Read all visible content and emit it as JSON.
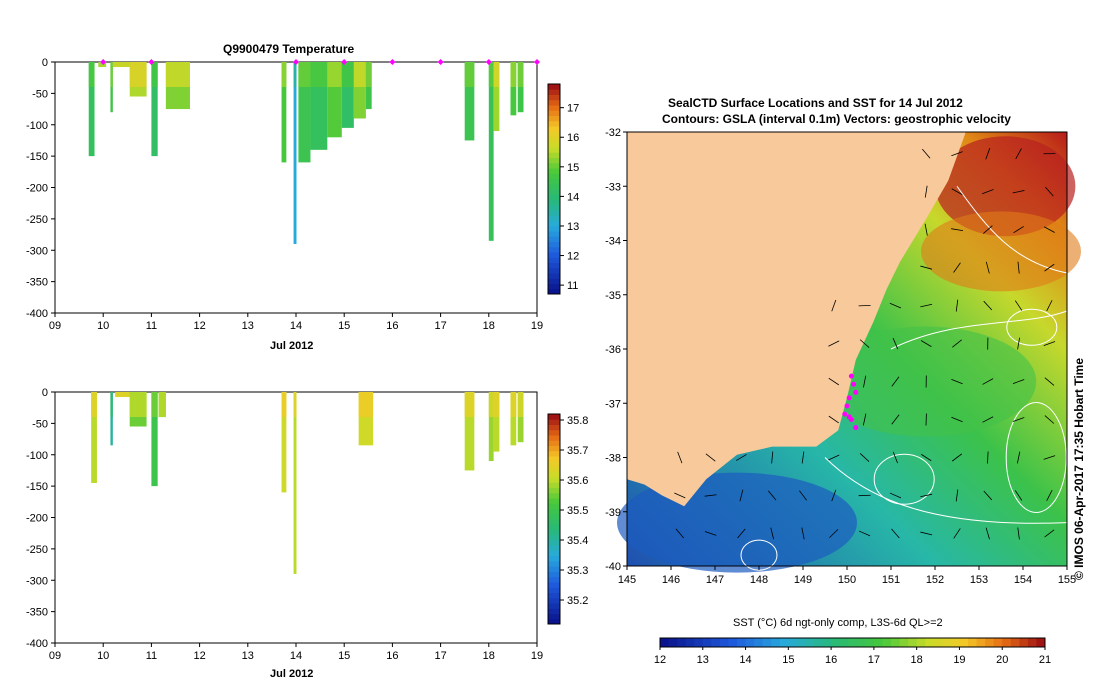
{
  "chart_data": [
    {
      "type": "heatmap",
      "title": "Q9900479  Temperature",
      "xlabel": "Jul 2012",
      "x_ticks": [
        "09",
        "10",
        "11",
        "12",
        "13",
        "14",
        "15",
        "16",
        "17",
        "18",
        "19"
      ],
      "xlim": [
        9,
        19
      ],
      "ylim": [
        -400,
        0
      ],
      "y_ticks": [
        0,
        -50,
        -100,
        -150,
        -200,
        -250,
        -300,
        -350,
        -400
      ],
      "colorbar": {
        "min": 10.7,
        "max": 17.8,
        "ticks": [
          11,
          12,
          13,
          14,
          15,
          16,
          17
        ]
      },
      "profile_markers_day": [
        10.0,
        11.0,
        14.0,
        15.0,
        16.0,
        17.0,
        18.0,
        19.0
      ],
      "profiles": [
        {
          "x": 9.7,
          "w": 0.12,
          "depth": -150,
          "value": 14.3
        },
        {
          "x": 9.9,
          "w": 0.16,
          "depth": -8,
          "value": 15.0
        },
        {
          "x": 10.15,
          "w": 0.05,
          "depth": -80,
          "value": 14.6
        },
        {
          "x": 10.2,
          "w": 0.35,
          "depth": -8,
          "value": 15.3
        },
        {
          "x": 10.55,
          "w": 0.35,
          "depth": -55,
          "value": 15.5
        },
        {
          "x": 11.0,
          "w": 0.13,
          "depth": -150,
          "value": 14.2
        },
        {
          "x": 11.3,
          "w": 0.5,
          "depth": -75,
          "value": 15.2
        },
        {
          "x": 13.7,
          "w": 0.1,
          "depth": -160,
          "value": 14.8
        },
        {
          "x": 13.95,
          "w": 0.06,
          "depth": -290,
          "value": 13.0
        },
        {
          "x": 14.05,
          "w": 0.25,
          "depth": -160,
          "value": 14.5
        },
        {
          "x": 14.3,
          "w": 0.35,
          "depth": -140,
          "value": 14.3
        },
        {
          "x": 14.65,
          "w": 0.3,
          "depth": -120,
          "value": 14.9
        },
        {
          "x": 14.95,
          "w": 0.25,
          "depth": -105,
          "value": 14.2
        },
        {
          "x": 15.2,
          "w": 0.25,
          "depth": -90,
          "value": 15.2
        },
        {
          "x": 15.45,
          "w": 0.12,
          "depth": -75,
          "value": 14.6
        },
        {
          "x": 17.5,
          "w": 0.2,
          "depth": -125,
          "value": 14.5
        },
        {
          "x": 18.0,
          "w": 0.1,
          "depth": -285,
          "value": 14.4
        },
        {
          "x": 18.1,
          "w": 0.12,
          "depth": -110,
          "value": 15.4
        },
        {
          "x": 18.45,
          "w": 0.12,
          "depth": -85,
          "value": 14.8
        },
        {
          "x": 18.6,
          "w": 0.12,
          "depth": -80,
          "value": 14.6
        }
      ]
    },
    {
      "type": "heatmap",
      "title": "",
      "xlabel": "Jul 2012",
      "x_ticks": [
        "09",
        "10",
        "11",
        "12",
        "13",
        "14",
        "15",
        "16",
        "17",
        "18",
        "19"
      ],
      "xlim": [
        9,
        19
      ],
      "ylim": [
        -400,
        0
      ],
      "y_ticks": [
        0,
        -50,
        -100,
        -150,
        -200,
        -250,
        -300,
        -350,
        -400
      ],
      "colorbar": {
        "min": 35.12,
        "max": 35.82,
        "ticks": [
          35.2,
          35.3,
          35.4,
          35.5,
          35.6,
          35.7,
          35.8
        ]
      },
      "profiles": [
        {
          "x": 9.75,
          "w": 0.12,
          "depth": -145,
          "value": 35.6
        },
        {
          "x": 10.15,
          "w": 0.05,
          "depth": -85,
          "value": 35.4
        },
        {
          "x": 10.25,
          "w": 0.3,
          "depth": -8,
          "value": 35.6
        },
        {
          "x": 10.55,
          "w": 0.35,
          "depth": -55,
          "value": 35.55
        },
        {
          "x": 11.0,
          "w": 0.13,
          "depth": -150,
          "value": 35.5
        },
        {
          "x": 11.15,
          "w": 0.15,
          "depth": -40,
          "value": 35.55
        },
        {
          "x": 13.7,
          "w": 0.1,
          "depth": -160,
          "value": 35.62
        },
        {
          "x": 13.95,
          "w": 0.06,
          "depth": -290,
          "value": 35.6
        },
        {
          "x": 15.3,
          "w": 0.3,
          "depth": -85,
          "value": 35.62
        },
        {
          "x": 17.5,
          "w": 0.2,
          "depth": -125,
          "value": 35.6
        },
        {
          "x": 18.0,
          "w": 0.1,
          "depth": -110,
          "value": 35.58
        },
        {
          "x": 18.1,
          "w": 0.12,
          "depth": -95,
          "value": 35.6
        },
        {
          "x": 18.45,
          "w": 0.12,
          "depth": -85,
          "value": 35.6
        },
        {
          "x": 18.6,
          "w": 0.12,
          "depth": -80,
          "value": 35.58
        }
      ]
    },
    {
      "type": "heatmap",
      "title": "SealCTD Surface Locations and SST for 14 Jul 2012",
      "subtitle": "Contours: GSLA (interval 0.1m) Vectors: geostrophic velocity",
      "xlim": [
        145,
        155
      ],
      "ylim": [
        -40,
        -32
      ],
      "x_ticks": [
        145,
        146,
        147,
        148,
        149,
        150,
        151,
        152,
        153,
        154,
        155
      ],
      "y_ticks": [
        -32,
        -33,
        -34,
        -35,
        -36,
        -37,
        -38,
        -39,
        -40
      ],
      "colorbar": {
        "label": "SST (°C) 6d ngt-only comp, L3S-6d QL>=2",
        "min": 12,
        "max": 21,
        "ticks": [
          12,
          13,
          14,
          15,
          16,
          17,
          18,
          19,
          20,
          21
        ]
      },
      "seal_locations": [
        {
          "lon": 150.1,
          "lat": -36.5
        },
        {
          "lon": 150.15,
          "lat": -36.65
        },
        {
          "lon": 150.2,
          "lat": -36.8
        },
        {
          "lon": 150.05,
          "lat": -36.9
        },
        {
          "lon": 150.0,
          "lat": -37.05
        },
        {
          "lon": 149.95,
          "lat": -37.2
        },
        {
          "lon": 150.1,
          "lat": -37.3
        },
        {
          "lon": 150.2,
          "lat": -37.45
        },
        {
          "lon": 150.05,
          "lat": -37.25
        }
      ]
    }
  ],
  "side_label": "© IMOS 06-Apr-2017 17:35 Hobart Time",
  "colors": {
    "land": "#f8c99a",
    "marker": "#ff00ff",
    "contour": "#ffffff"
  }
}
